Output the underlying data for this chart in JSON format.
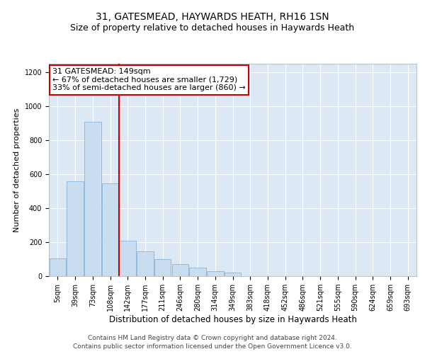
{
  "title": "31, GATESMEAD, HAYWARDS HEATH, RH16 1SN",
  "subtitle": "Size of property relative to detached houses in Haywards Heath",
  "xlabel": "Distribution of detached houses by size in Haywards Heath",
  "ylabel": "Number of detached properties",
  "categories": [
    "5sqm",
    "39sqm",
    "73sqm",
    "108sqm",
    "142sqm",
    "177sqm",
    "211sqm",
    "246sqm",
    "280sqm",
    "314sqm",
    "349sqm",
    "383sqm",
    "418sqm",
    "452sqm",
    "486sqm",
    "521sqm",
    "555sqm",
    "590sqm",
    "624sqm",
    "659sqm",
    "693sqm"
  ],
  "values": [
    105,
    560,
    910,
    545,
    210,
    145,
    100,
    70,
    50,
    30,
    20,
    0,
    0,
    0,
    0,
    0,
    0,
    0,
    0,
    0,
    0
  ],
  "bar_color": "#c9ddf0",
  "bar_edge_color": "#8ab4d8",
  "vline_x": 3.5,
  "vline_color": "#cc0000",
  "annotation_text": "31 GATESMEAD: 149sqm\n← 67% of detached houses are smaller (1,729)\n33% of semi-detached houses are larger (860) →",
  "annotation_box_color": "#ffffff",
  "annotation_box_edge_color": "#cc0000",
  "ylim": [
    0,
    1250
  ],
  "yticks": [
    0,
    200,
    400,
    600,
    800,
    1000,
    1200
  ],
  "plot_bg_color": "#dce9f5",
  "footer_line1": "Contains HM Land Registry data © Crown copyright and database right 2024.",
  "footer_line2": "Contains public sector information licensed under the Open Government Licence v3.0.",
  "title_fontsize": 10,
  "subtitle_fontsize": 9,
  "xlabel_fontsize": 8.5,
  "ylabel_fontsize": 8,
  "tick_fontsize": 7,
  "footer_fontsize": 6.5
}
